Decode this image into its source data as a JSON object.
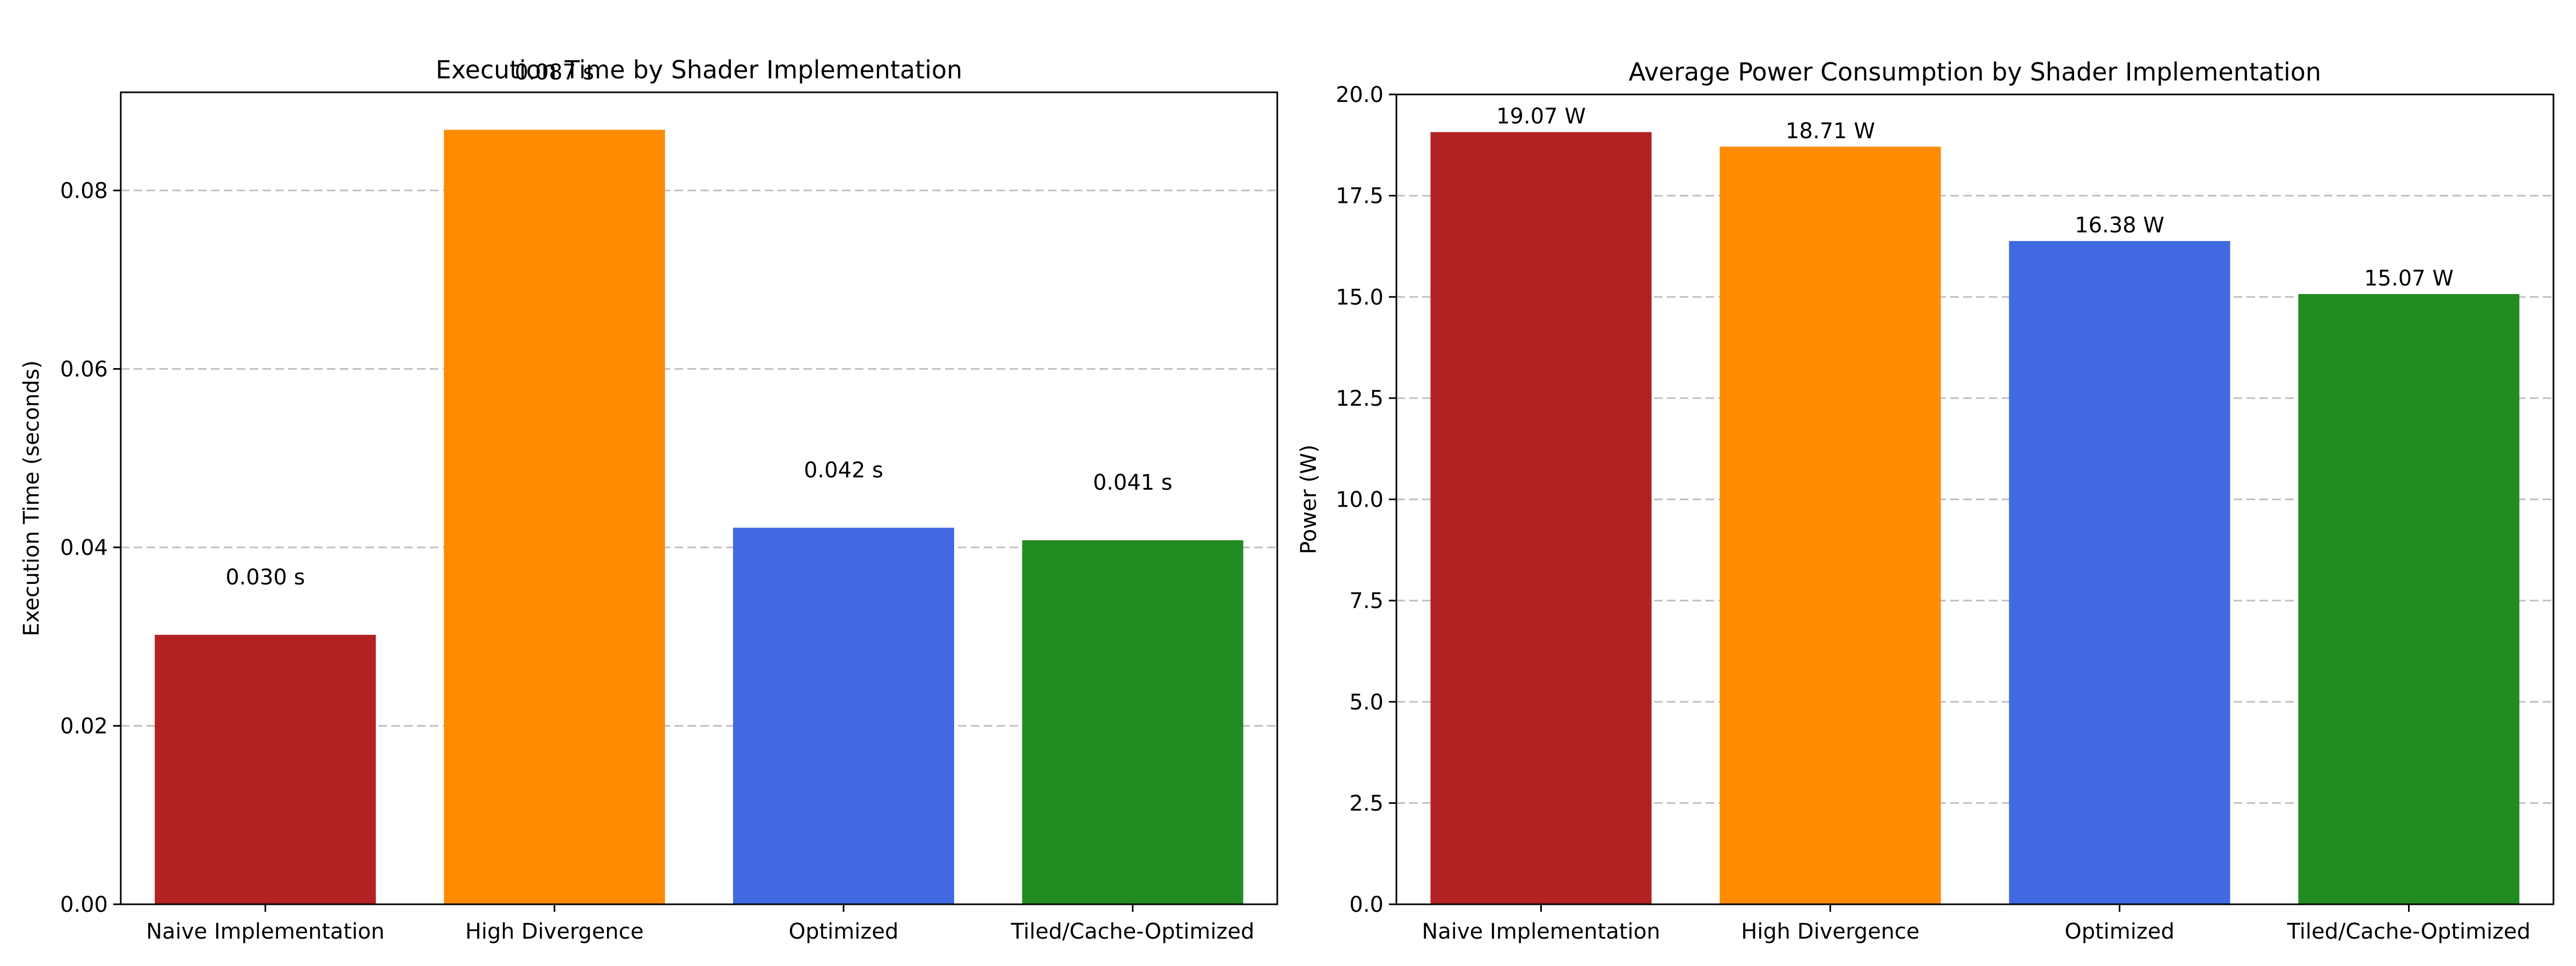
{
  "chart_data": [
    {
      "type": "bar",
      "title": "Execution Time by Shader Implementation",
      "xlabel": "",
      "ylabel": "Execution Time (seconds)",
      "categories": [
        "Naive Implementation",
        "High Divergence",
        "Optimized",
        "Tiled/Cache-Optimized"
      ],
      "values": [
        0.0302,
        0.0868,
        0.0422,
        0.0408
      ],
      "data_labels": [
        "0.030 s",
        "0.087 s",
        "0.042 s",
        "0.041 s"
      ],
      "colors": [
        "#b22222",
        "#ff8c00",
        "#4169e1",
        "#228b22"
      ],
      "ylim": [
        0,
        0.091
      ],
      "yticks": [
        0.0,
        0.02,
        0.04,
        0.06,
        0.08
      ],
      "ytick_labels": [
        "0.00",
        "0.02",
        "0.04",
        "0.06",
        "0.08"
      ],
      "grid": "y-dashed",
      "legend": "none"
    },
    {
      "type": "bar",
      "title": "Average Power Consumption by Shader Implementation",
      "xlabel": "",
      "ylabel": "Power (W)",
      "categories": [
        "Naive Implementation",
        "High Divergence",
        "Optimized",
        "Tiled/Cache-Optimized"
      ],
      "values": [
        19.07,
        18.71,
        16.38,
        15.07
      ],
      "data_labels": [
        "19.07 W",
        "18.71 W",
        "16.38 W",
        "15.07 W"
      ],
      "colors": [
        "#b22222",
        "#ff8c00",
        "#4169e1",
        "#228b22"
      ],
      "ylim": [
        0,
        20
      ],
      "yticks": [
        0.0,
        2.5,
        5.0,
        7.5,
        10.0,
        12.5,
        15.0,
        17.5,
        20.0
      ],
      "ytick_labels": [
        "0.0",
        "2.5",
        "5.0",
        "7.5",
        "10.0",
        "12.5",
        "15.0",
        "17.5",
        "20.0"
      ],
      "grid": "y-dashed",
      "legend": "none"
    }
  ]
}
